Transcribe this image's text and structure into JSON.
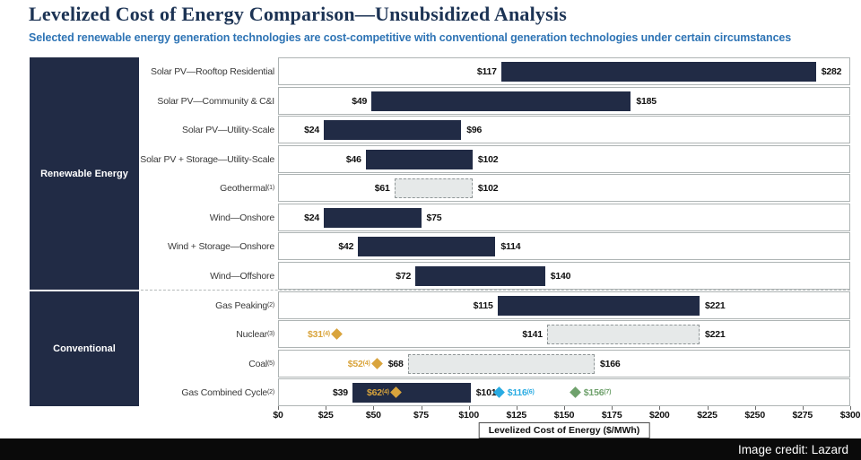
{
  "header": {
    "title": "Levelized Cost of Energy Comparison—Unsubsidized Analysis",
    "subtitle": "Selected renewable energy generation technologies are cost-competitive with conventional generation technologies under certain circumstances"
  },
  "groups": [
    {
      "id": "renewable",
      "label": "Renewable Energy"
    },
    {
      "id": "conventional",
      "label": "Conventional"
    }
  ],
  "colors": {
    "navy": "#212B45",
    "gold": "#D9A43C",
    "blue": "#29ABE2",
    "green": "#6FA16C",
    "dashed_fill": "#E6E9E9",
    "title": "#1C3354",
    "subtitle": "#2E74B5"
  },
  "chart_data": {
    "type": "bar",
    "subtype": "horizontal_range_bar",
    "title": "Levelized Cost of Energy Comparison—Unsubsidized Analysis",
    "xlabel": "Levelized Cost of Energy ($/MWh)",
    "xlim": [
      0,
      300
    ],
    "xtick_step": 25,
    "xtick_labels": [
      "$0",
      "$25",
      "$50",
      "$75",
      "$100",
      "$125",
      "$150",
      "$175",
      "$200",
      "$225",
      "$250",
      "$275",
      "$300"
    ],
    "grid": false,
    "rows": [
      {
        "group": "renewable",
        "label": "Solar PV—Rooftop Residential",
        "sup": "",
        "min": 117,
        "max": 282,
        "min_label": "$117",
        "max_label": "$282",
        "style": "solid",
        "markers": []
      },
      {
        "group": "renewable",
        "label": "Solar PV—Community & C&I",
        "sup": "",
        "min": 49,
        "max": 185,
        "min_label": "$49",
        "max_label": "$185",
        "style": "solid",
        "markers": []
      },
      {
        "group": "renewable",
        "label": "Solar PV—Utility-Scale",
        "sup": "",
        "min": 24,
        "max": 96,
        "min_label": "$24",
        "max_label": "$96",
        "style": "solid",
        "markers": []
      },
      {
        "group": "renewable",
        "label": "Solar PV + Storage—Utility-Scale",
        "sup": "",
        "min": 46,
        "max": 102,
        "min_label": "$46",
        "max_label": "$102",
        "style": "solid",
        "markers": []
      },
      {
        "group": "renewable",
        "label": "Geothermal",
        "sup": "(1)",
        "min": 61,
        "max": 102,
        "min_label": "$61",
        "max_label": "$102",
        "style": "dashed",
        "markers": []
      },
      {
        "group": "renewable",
        "label": "Wind—Onshore",
        "sup": "",
        "min": 24,
        "max": 75,
        "min_label": "$24",
        "max_label": "$75",
        "style": "solid",
        "markers": []
      },
      {
        "group": "renewable",
        "label": "Wind + Storage—Onshore",
        "sup": "",
        "min": 42,
        "max": 114,
        "min_label": "$42",
        "max_label": "$114",
        "style": "solid",
        "markers": []
      },
      {
        "group": "renewable",
        "label": "Wind—Offshore",
        "sup": "",
        "min": 72,
        "max": 140,
        "min_label": "$72",
        "max_label": "$140",
        "style": "solid",
        "markers": []
      },
      {
        "group": "conventional",
        "label": "Gas Peaking",
        "sup": "(2)",
        "min": 115,
        "max": 221,
        "min_label": "$115",
        "max_label": "$221",
        "style": "solid",
        "markers": []
      },
      {
        "group": "conventional",
        "label": "Nuclear",
        "sup": "(3)",
        "min": 141,
        "max": 221,
        "min_label": "$141",
        "max_label": "$221",
        "style": "dashed",
        "markers": [
          {
            "value": 31,
            "label": "$31",
            "sup": "(4)",
            "color": "gold",
            "label_side": "left",
            "inside": false
          }
        ]
      },
      {
        "group": "conventional",
        "label": "Coal",
        "sup": "(5)",
        "min": 68,
        "max": 166,
        "min_label": "$68",
        "max_label": "$166",
        "style": "dashed",
        "markers": [
          {
            "value": 52,
            "label": "$52",
            "sup": "(4)",
            "color": "gold",
            "label_side": "left",
            "inside": false
          }
        ]
      },
      {
        "group": "conventional",
        "label": "Gas Combined Cycle",
        "sup": "(2)",
        "min": 39,
        "max": 101,
        "min_label": "$39",
        "max_label": "$101",
        "style": "solid",
        "markers": [
          {
            "value": 62,
            "label": "$62",
            "sup": "(4)",
            "color": "gold",
            "label_side": "left",
            "inside": true
          },
          {
            "value": 116,
            "label": "$116",
            "sup": "(6)",
            "color": "blue",
            "label_side": "right",
            "inside": false
          },
          {
            "value": 156,
            "label": "$156",
            "sup": "(7)",
            "color": "green",
            "label_side": "right",
            "inside": false
          }
        ]
      }
    ]
  },
  "footer": {
    "credit": "Image credit: Lazard"
  }
}
